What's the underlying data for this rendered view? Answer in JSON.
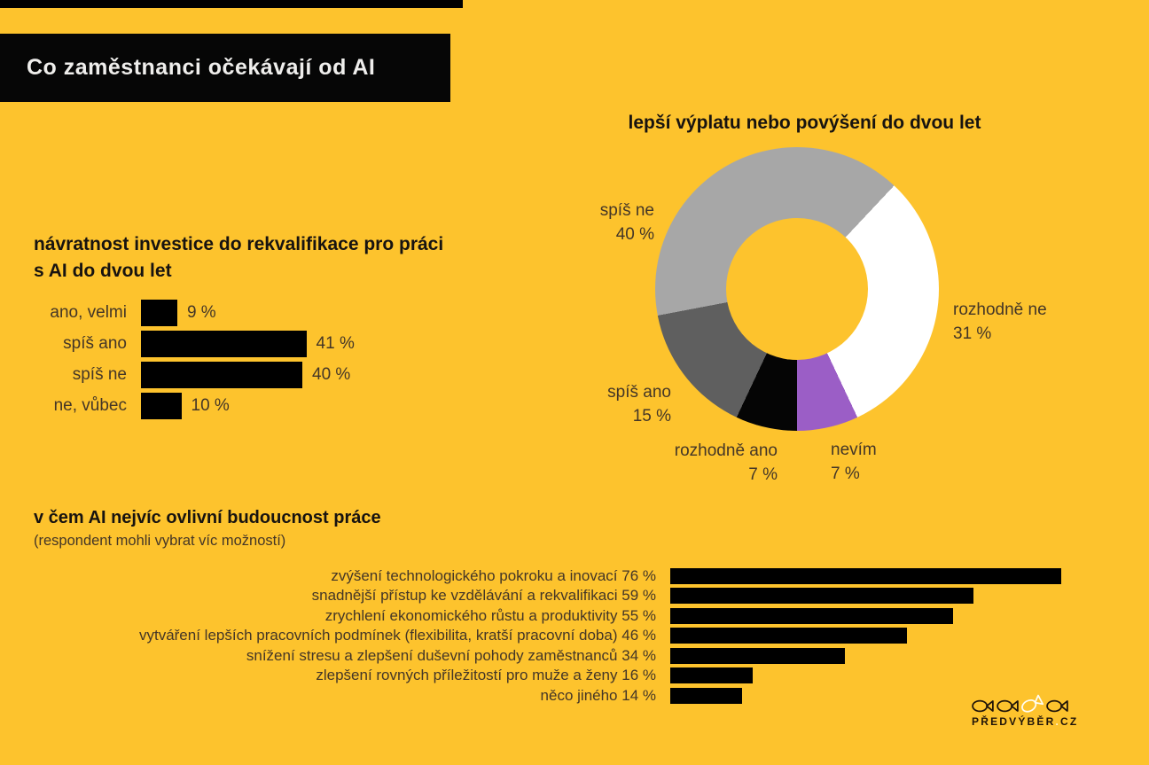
{
  "page": {
    "background_color": "#fdc32d",
    "bar_color": "#000000",
    "heading_color": "#171310",
    "label_color": "#443627"
  },
  "header": {
    "title": "Co zaměstnanci očekávají od AI"
  },
  "logo": {
    "name": "PŘEDVÝBĚR",
    "dot": ".",
    "tld": "CZ"
  },
  "chart_data": [
    {
      "type": "bar",
      "orientation": "horizontal",
      "title": "návratnost investice do rekvalifikace pro práci s AI do dvou let",
      "categories": [
        "ano, velmi",
        "spíš ano",
        "spíš ne",
        "ne, vůbec"
      ],
      "values": [
        9,
        41,
        40,
        10
      ],
      "value_labels": [
        "9 %",
        "41 %",
        "40 %",
        "10 %"
      ],
      "bar_color": "#000000",
      "xlim": [
        0,
        45
      ],
      "grid": false,
      "legend": false
    },
    {
      "type": "pie",
      "subtype": "donut",
      "title": "lepší výplatu nebo povýšení do dvou let",
      "labels": [
        "rozhodně ne",
        "nevím",
        "rozhodně ano",
        "spíš ano",
        "spíš ne"
      ],
      "values": [
        31,
        7,
        7,
        15,
        40
      ],
      "value_labels": [
        "31 %",
        "7 %",
        "7 %",
        "15 %",
        "40 %"
      ],
      "colors": [
        "#ffffff",
        "#9b5ec6",
        "#050505",
        "#5f5f5f",
        "#a7a7a7"
      ],
      "start_angle_deg": 43.2,
      "direction": "clockwise",
      "legend": false
    },
    {
      "type": "bar",
      "orientation": "horizontal",
      "title": "v čem AI nejvíc ovlivní budoucnost práce",
      "subtitle": "(respondent mohli vybrat víc možností)",
      "categories": [
        "zvýšení technologického pokroku a inovací",
        "snadnější přístup ke vzdělávání a rekvalifikaci",
        "zrychlení ekonomického růstu a produktivity",
        "vytváření lepších pracovních podmínek (flexibilita, kratší pracovní doba)",
        "snížení stresu a zlepšení duševní pohody zaměstnanců",
        "zlepšení rovných příležitostí pro muže a ženy",
        "něco jiného"
      ],
      "values": [
        76,
        59,
        55,
        46,
        34,
        16,
        14
      ],
      "value_labels": [
        "76 %",
        "59 %",
        "55 %",
        "46 %",
        "34 %",
        "16 %",
        "14 %"
      ],
      "bar_color": "#000000",
      "xlim": [
        0,
        80
      ],
      "grid": false,
      "legend": false
    }
  ]
}
